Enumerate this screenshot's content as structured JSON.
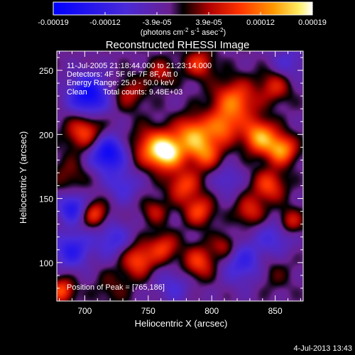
{
  "chart_data": {
    "type": "heatmap",
    "title": "Reconstructed RHESSI Image",
    "xlabel": "Heliocentric X (arcsec)",
    "ylabel": "Heliocentric Y (arcsec)",
    "xlim": [
      678,
      872
    ],
    "ylim": [
      70,
      265
    ],
    "x_ticks": [
      700,
      750,
      800,
      850
    ],
    "y_ticks": [
      100,
      150,
      200,
      250
    ],
    "colorbar": {
      "range": [
        -0.00019,
        0.00019
      ],
      "tick_labels": [
        "-0.00019",
        "-0.00012",
        "-3.9e-05",
        "3.9e-05",
        "0.00012",
        "0.00019"
      ],
      "unit_main": "(photons cm",
      "unit_exp1": "-2",
      "unit_mid": " s",
      "unit_exp2": "-1",
      "unit_end": " asec",
      "unit_exp3": "-2",
      "unit_close": ")"
    },
    "annotations": {
      "time_range": "11-Jul-2005 21:18:44.000 to 21:23:14.000",
      "detectors": "Detectors: 4F 5F 6F 7F 8F, Att 0",
      "energy": "Energy Range: 25.0 - 50.0 keV",
      "method": "Clean",
      "counts": "Total counts: 9.48E+03",
      "peak": "Position of Peak = [765,186]"
    },
    "blobs": [
      {
        "x": 765,
        "y": 186,
        "sigma": 9,
        "v": 1.0
      },
      {
        "x": 752,
        "y": 190,
        "sigma": 11,
        "v": 0.55
      },
      {
        "x": 785,
        "y": 200,
        "sigma": 10,
        "v": 0.75
      },
      {
        "x": 795,
        "y": 185,
        "sigma": 9,
        "v": 0.6
      },
      {
        "x": 778,
        "y": 160,
        "sigma": 9,
        "v": 0.55
      },
      {
        "x": 790,
        "y": 140,
        "sigma": 8,
        "v": 0.55
      },
      {
        "x": 808,
        "y": 205,
        "sigma": 9,
        "v": 0.55
      },
      {
        "x": 818,
        "y": 225,
        "sigma": 12,
        "v": 0.7
      },
      {
        "x": 838,
        "y": 198,
        "sigma": 9,
        "v": 0.85
      },
      {
        "x": 855,
        "y": 188,
        "sigma": 8,
        "v": 0.8
      },
      {
        "x": 845,
        "y": 160,
        "sigma": 9,
        "v": 0.55
      },
      {
        "x": 862,
        "y": 132,
        "sigma": 7,
        "v": 0.45
      },
      {
        "x": 830,
        "y": 140,
        "sigma": 8,
        "v": 0.45
      },
      {
        "x": 700,
        "y": 202,
        "sigma": 10,
        "v": 0.6
      },
      {
        "x": 708,
        "y": 138,
        "sigma": 7,
        "v": 0.55
      },
      {
        "x": 742,
        "y": 102,
        "sigma": 9,
        "v": 0.6
      },
      {
        "x": 762,
        "y": 112,
        "sigma": 8,
        "v": 0.5
      },
      {
        "x": 790,
        "y": 100,
        "sigma": 9,
        "v": 0.55
      },
      {
        "x": 810,
        "y": 113,
        "sigma": 7,
        "v": 0.4
      },
      {
        "x": 755,
        "y": 140,
        "sigma": 7,
        "v": 0.35
      },
      {
        "x": 682,
        "y": 78,
        "sigma": 7,
        "v": 0.6
      },
      {
        "x": 790,
        "y": 255,
        "sigma": 8,
        "v": 0.5
      },
      {
        "x": 735,
        "y": 232,
        "sigma": 9,
        "v": 0.35
      },
      {
        "x": 760,
        "y": 248,
        "sigma": 8,
        "v": 0.35
      },
      {
        "x": 850,
        "y": 238,
        "sigma": 9,
        "v": 0.45
      },
      {
        "x": 688,
        "y": 168,
        "sigma": 10,
        "v": 0.25
      },
      {
        "x": 722,
        "y": 80,
        "sigma": 10,
        "v": 0.2
      },
      {
        "x": 848,
        "y": 92,
        "sigma": 10,
        "v": 0.2
      },
      {
        "x": 703,
        "y": 230,
        "sigma": 11,
        "v": -0.8
      },
      {
        "x": 718,
        "y": 185,
        "sigma": 10,
        "v": -0.8
      },
      {
        "x": 690,
        "y": 143,
        "sigma": 8,
        "v": -0.6
      },
      {
        "x": 690,
        "y": 110,
        "sigma": 10,
        "v": -0.55
      },
      {
        "x": 722,
        "y": 118,
        "sigma": 10,
        "v": -0.4
      },
      {
        "x": 825,
        "y": 100,
        "sigma": 12,
        "v": -0.45
      },
      {
        "x": 850,
        "y": 120,
        "sigma": 10,
        "v": -0.35
      },
      {
        "x": 812,
        "y": 165,
        "sigma": 8,
        "v": -0.3
      },
      {
        "x": 730,
        "y": 160,
        "sigma": 9,
        "v": -0.35
      },
      {
        "x": 860,
        "y": 255,
        "sigma": 10,
        "v": -0.3
      },
      {
        "x": 770,
        "y": 82,
        "sigma": 10,
        "v": -0.3
      }
    ]
  },
  "footer": {
    "date": "4-Jul-2013 13:43"
  }
}
